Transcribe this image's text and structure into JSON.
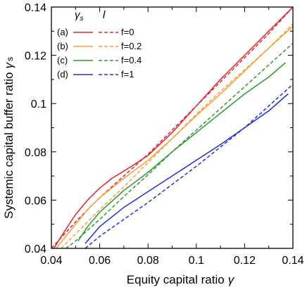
{
  "chart_data": {
    "type": "line",
    "xlabel": "Equity capital ratio",
    "xlabel_symbol": "γ",
    "ylabel": "Systemic capital buffer ratio",
    "ylabel_symbol": "γ",
    "ylabel_subscript": "s",
    "xlim": [
      0.04,
      0.14
    ],
    "ylim": [
      0.04,
      0.14
    ],
    "x_ticks": [
      "0.04",
      "0.06",
      "0.08",
      "0.1",
      "0.12",
      "0.14"
    ],
    "y_ticks": [
      "0.04",
      "0.06",
      "0.08",
      "0.1",
      "0.12",
      "0.14"
    ],
    "grid": false,
    "legend_position": "top-left",
    "legend_header": {
      "solid_symbol": "γ",
      "solid_subscript": "s",
      "dashed_symbol": "l"
    },
    "colors": {
      "a": "#e8202a",
      "b": "#f5a033",
      "c": "#2a9a2a",
      "d": "#2030d8"
    },
    "series": [
      {
        "id": "a",
        "label": "(a)",
        "f_label": "f=0",
        "style": "solid",
        "color": "#e8202a",
        "points": [
          [
            0.041,
            0.04
          ],
          [
            0.046,
            0.048
          ],
          [
            0.05,
            0.054
          ],
          [
            0.055,
            0.06
          ],
          [
            0.06,
            0.065
          ],
          [
            0.065,
            0.069
          ],
          [
            0.07,
            0.072
          ],
          [
            0.075,
            0.0752
          ],
          [
            0.08,
            0.0785
          ],
          [
            0.09,
            0.088
          ],
          [
            0.1,
            0.099
          ],
          [
            0.11,
            0.11
          ],
          [
            0.12,
            0.12
          ],
          [
            0.13,
            0.13
          ],
          [
            0.14,
            0.14
          ]
        ]
      },
      {
        "id": "a",
        "label": "(a)",
        "f_label": "f=0",
        "style": "dashed",
        "color": "#e8202a",
        "points": [
          [
            0.04,
            0.04
          ],
          [
            0.05,
            0.051
          ],
          [
            0.06,
            0.061
          ],
          [
            0.07,
            0.07
          ],
          [
            0.08,
            0.079
          ],
          [
            0.09,
            0.089
          ],
          [
            0.1,
            0.099
          ],
          [
            0.11,
            0.109
          ],
          [
            0.12,
            0.119
          ],
          [
            0.13,
            0.129
          ],
          [
            0.14,
            0.14
          ]
        ]
      },
      {
        "id": "b",
        "label": "(b)",
        "f_label": "f=0.2",
        "style": "solid",
        "color": "#f5a033",
        "points": [
          [
            0.042,
            0.04
          ],
          [
            0.05,
            0.05
          ],
          [
            0.055,
            0.056
          ],
          [
            0.06,
            0.061
          ],
          [
            0.07,
            0.069
          ],
          [
            0.08,
            0.0765
          ],
          [
            0.09,
            0.0855
          ],
          [
            0.1,
            0.095
          ],
          [
            0.11,
            0.104
          ],
          [
            0.12,
            0.1135
          ],
          [
            0.13,
            0.123
          ],
          [
            0.14,
            0.132
          ]
        ]
      },
      {
        "id": "b",
        "label": "(b)",
        "f_label": "f=0.2",
        "style": "dashed",
        "color": "#f5a033",
        "points": [
          [
            0.044,
            0.04
          ],
          [
            0.05,
            0.046
          ],
          [
            0.06,
            0.056
          ],
          [
            0.07,
            0.0655
          ],
          [
            0.08,
            0.0755
          ],
          [
            0.09,
            0.0855
          ],
          [
            0.1,
            0.0955
          ],
          [
            0.11,
            0.105
          ],
          [
            0.12,
            0.114
          ],
          [
            0.13,
            0.123
          ],
          [
            0.14,
            0.133
          ]
        ]
      },
      {
        "id": "c",
        "label": "(c)",
        "f_label": "f=0.4",
        "style": "solid",
        "color": "#2a9a2a",
        "points": [
          [
            0.051,
            0.043
          ],
          [
            0.055,
            0.049
          ],
          [
            0.06,
            0.055
          ],
          [
            0.07,
            0.064
          ],
          [
            0.08,
            0.0715
          ],
          [
            0.09,
            0.08
          ],
          [
            0.1,
            0.088
          ],
          [
            0.11,
            0.096
          ],
          [
            0.12,
            0.104
          ],
          [
            0.13,
            0.111
          ],
          [
            0.137,
            0.117
          ]
        ]
      },
      {
        "id": "c",
        "label": "(c)",
        "f_label": "f=0.4",
        "style": "dashed",
        "color": "#2a9a2a",
        "points": [
          [
            0.046,
            0.04
          ],
          [
            0.05,
            0.043
          ],
          [
            0.06,
            0.052
          ],
          [
            0.07,
            0.0615
          ],
          [
            0.08,
            0.0705
          ],
          [
            0.09,
            0.08
          ],
          [
            0.1,
            0.089
          ],
          [
            0.11,
            0.098
          ],
          [
            0.12,
            0.107
          ],
          [
            0.13,
            0.116
          ],
          [
            0.14,
            0.125
          ]
        ]
      },
      {
        "id": "d",
        "label": "(d)",
        "f_label": "f=1",
        "style": "solid",
        "color": "#2030d8",
        "points": [
          [
            0.054,
            0.042
          ],
          [
            0.06,
            0.049
          ],
          [
            0.07,
            0.057
          ],
          [
            0.08,
            0.0635
          ],
          [
            0.09,
            0.07
          ],
          [
            0.1,
            0.0765
          ],
          [
            0.11,
            0.083
          ],
          [
            0.12,
            0.09
          ],
          [
            0.13,
            0.097
          ],
          [
            0.138,
            0.104
          ]
        ]
      },
      {
        "id": "d",
        "label": "(d)",
        "f_label": "f=1",
        "style": "dashed",
        "color": "#2030d8",
        "points": [
          [
            0.054,
            0.04
          ],
          [
            0.06,
            0.045
          ],
          [
            0.07,
            0.052
          ],
          [
            0.08,
            0.059
          ],
          [
            0.09,
            0.0665
          ],
          [
            0.1,
            0.074
          ],
          [
            0.11,
            0.082
          ],
          [
            0.12,
            0.09
          ],
          [
            0.13,
            0.099
          ],
          [
            0.14,
            0.108
          ]
        ]
      }
    ]
  }
}
